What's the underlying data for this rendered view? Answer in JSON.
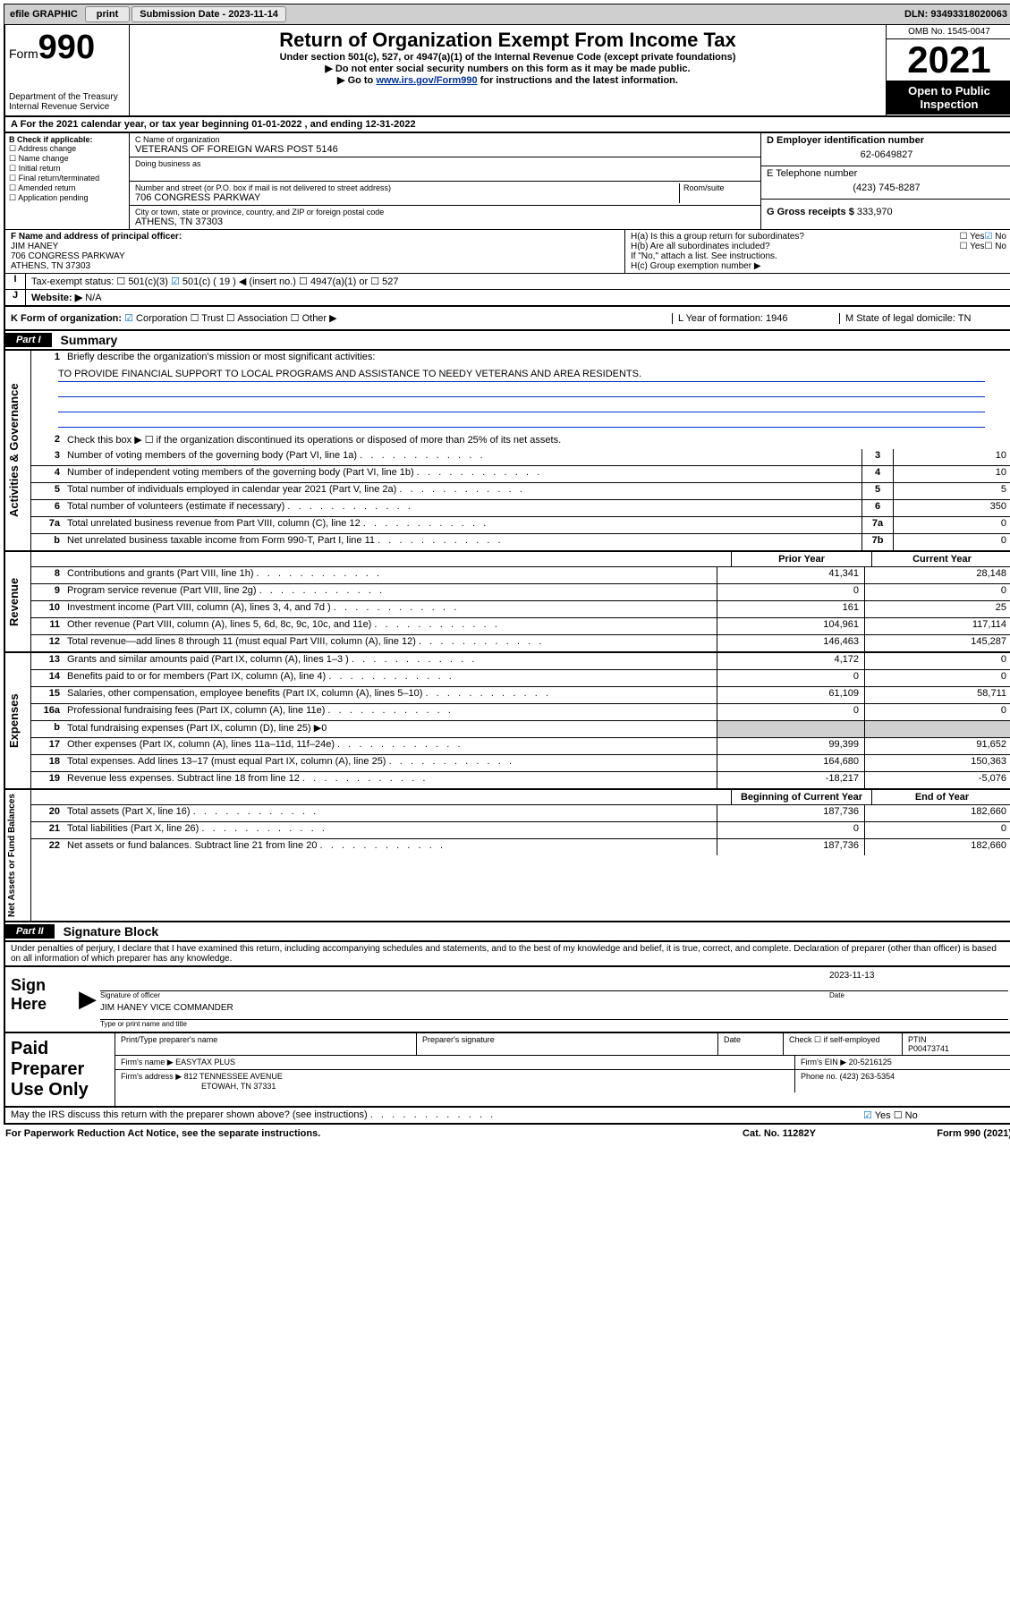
{
  "topbar": {
    "efile": "efile GRAPHIC",
    "print": "print",
    "subdate_label": "Submission Date - 2023-11-14",
    "dln": "DLN: 93493318020063"
  },
  "header": {
    "form_word": "Form",
    "form_num": "990",
    "dept": "Department of the Treasury",
    "irs": "Internal Revenue Service",
    "title": "Return of Organization Exempt From Income Tax",
    "sub": "Under section 501(c), 527, or 4947(a)(1) of the Internal Revenue Code (except private foundations)",
    "note1": "Do not enter social security numbers on this form as it may be made public.",
    "note2_pre": "Go to ",
    "note2_link": "www.irs.gov/Form990",
    "note2_post": " for instructions and the latest information.",
    "omb": "OMB No. 1545-0047",
    "year": "2021",
    "open": "Open to Public Inspection"
  },
  "rowA": "For the 2021 calendar year, or tax year beginning 01-01-2022   , and ending 12-31-2022",
  "boxB": {
    "title": "B Check if applicable:",
    "opts": [
      "Address change",
      "Name change",
      "Initial return",
      "Final return/terminated",
      "Amended return",
      "Application pending"
    ]
  },
  "boxC": {
    "label": "C Name of organization",
    "name": "VETERANS OF FOREIGN WARS POST 5146",
    "dba_label": "Doing business as",
    "addr_label": "Number and street (or P.O. box if mail is not delivered to street address)",
    "room": "Room/suite",
    "addr": "706 CONGRESS PARKWAY",
    "city_label": "City or town, state or province, country, and ZIP or foreign postal code",
    "city": "ATHENS, TN  37303"
  },
  "boxD": {
    "label": "D Employer identification number",
    "val": "62-0649827"
  },
  "boxE": {
    "label": "E Telephone number",
    "val": "(423) 745-8287"
  },
  "boxG": {
    "label": "G Gross receipts $",
    "val": "333,970"
  },
  "boxF": {
    "label": "F  Name and address of principal officer:",
    "name": "JIM HANEY",
    "addr1": "706 CONGRESS PARKWAY",
    "addr2": "ATHENS, TN  37303"
  },
  "boxH": {
    "a": "H(a)  Is this a group return for subordinates?",
    "b": "H(b)  Are all subordinates included?",
    "b_note": "If \"No,\" attach a list. See instructions.",
    "c": "H(c)  Group exemption number ▶",
    "yes": "Yes",
    "no": "No"
  },
  "rowI": {
    "label": "Tax-exempt status:",
    "o1": "501(c)(3)",
    "o2": "501(c) ( 19 ) ◀ (insert no.)",
    "o3": "4947(a)(1) or",
    "o4": "527"
  },
  "rowJ": {
    "label": "Website: ▶",
    "val": "N/A"
  },
  "rowK": {
    "label": "K Form of organization:",
    "opts": [
      "Corporation",
      "Trust",
      "Association",
      "Other ▶"
    ],
    "L": "L Year of formation: 1946",
    "M": "M State of legal domicile: TN"
  },
  "parts": {
    "p1": "Part I",
    "p1_title": "Summary",
    "p2": "Part II",
    "p2_title": "Signature Block"
  },
  "vlabels": {
    "ag": "Activities & Governance",
    "rev": "Revenue",
    "exp": "Expenses",
    "na": "Net Assets or Fund Balances"
  },
  "line1": {
    "label": "Briefly describe the organization's mission or most significant activities:",
    "text": "TO PROVIDE FINANCIAL SUPPORT TO LOCAL PROGRAMS AND ASSISTANCE TO NEEDY VETERANS AND AREA RESIDENTS."
  },
  "line2": "Check this box ▶ ☐  if the organization discontinued its operations or disposed of more than 25% of its net assets.",
  "govlines": [
    {
      "n": "3",
      "t": "Number of voting members of the governing body (Part VI, line 1a)",
      "bx": "3",
      "v": "10"
    },
    {
      "n": "4",
      "t": "Number of independent voting members of the governing body (Part VI, line 1b)",
      "bx": "4",
      "v": "10"
    },
    {
      "n": "5",
      "t": "Total number of individuals employed in calendar year 2021 (Part V, line 2a)",
      "bx": "5",
      "v": "5"
    },
    {
      "n": "6",
      "t": "Total number of volunteers (estimate if necessary)",
      "bx": "6",
      "v": "350"
    },
    {
      "n": "7a",
      "t": "Total unrelated business revenue from Part VIII, column (C), line 12",
      "bx": "7a",
      "v": "0"
    },
    {
      "n": "b",
      "t": "Net unrelated business taxable income from Form 990-T, Part I, line 11",
      "bx": "7b",
      "v": "0"
    }
  ],
  "colhdrs": {
    "py": "Prior Year",
    "cy": "Current Year"
  },
  "revlines": [
    {
      "n": "8",
      "t": "Contributions and grants (Part VIII, line 1h)",
      "p": "41,341",
      "c": "28,148"
    },
    {
      "n": "9",
      "t": "Program service revenue (Part VIII, line 2g)",
      "p": "0",
      "c": "0"
    },
    {
      "n": "10",
      "t": "Investment income (Part VIII, column (A), lines 3, 4, and 7d )",
      "p": "161",
      "c": "25"
    },
    {
      "n": "11",
      "t": "Other revenue (Part VIII, column (A), lines 5, 6d, 8c, 9c, 10c, and 11e)",
      "p": "104,961",
      "c": "117,114"
    },
    {
      "n": "12",
      "t": "Total revenue—add lines 8 through 11 (must equal Part VIII, column (A), line 12)",
      "p": "146,463",
      "c": "145,287"
    }
  ],
  "explines": [
    {
      "n": "13",
      "t": "Grants and similar amounts paid (Part IX, column (A), lines 1–3 )",
      "p": "4,172",
      "c": "0"
    },
    {
      "n": "14",
      "t": "Benefits paid to or for members (Part IX, column (A), line 4)",
      "p": "0",
      "c": "0"
    },
    {
      "n": "15",
      "t": "Salaries, other compensation, employee benefits (Part IX, column (A), lines 5–10)",
      "p": "61,109",
      "c": "58,711"
    },
    {
      "n": "16a",
      "t": "Professional fundraising fees (Part IX, column (A), line 11e)",
      "p": "0",
      "c": "0"
    },
    {
      "n": "b",
      "t": "Total fundraising expenses (Part IX, column (D), line 25) ▶0",
      "p": "",
      "c": "",
      "shade": true
    },
    {
      "n": "17",
      "t": "Other expenses (Part IX, column (A), lines 11a–11d, 11f–24e)",
      "p": "99,399",
      "c": "91,652"
    },
    {
      "n": "18",
      "t": "Total expenses. Add lines 13–17 (must equal Part IX, column (A), line 25)",
      "p": "164,680",
      "c": "150,363"
    },
    {
      "n": "19",
      "t": "Revenue less expenses. Subtract line 18 from line 12",
      "p": "-18,217",
      "c": "-5,076"
    }
  ],
  "nahdrs": {
    "b": "Beginning of Current Year",
    "e": "End of Year"
  },
  "nalines": [
    {
      "n": "20",
      "t": "Total assets (Part X, line 16)",
      "p": "187,736",
      "c": "182,660"
    },
    {
      "n": "21",
      "t": "Total liabilities (Part X, line 26)",
      "p": "0",
      "c": "0"
    },
    {
      "n": "22",
      "t": "Net assets or fund balances. Subtract line 21 from line 20",
      "p": "187,736",
      "c": "182,660"
    }
  ],
  "sigdecl": "Under penalties of perjury, I declare that I have examined this return, including accompanying schedules and statements, and to the best of my knowledge and belief, it is true, correct, and complete. Declaration of preparer (other than officer) is based on all information of which preparer has any knowledge.",
  "sign": {
    "here": "Sign Here",
    "sig_label": "Signature of officer",
    "date_label": "Date",
    "date": "2023-11-13",
    "name": "JIM HANEY VICE COMMANDER",
    "name_label": "Type or print name and title"
  },
  "prep": {
    "title": "Paid Preparer Use Only",
    "h_name": "Print/Type preparer's name",
    "h_sig": "Preparer's signature",
    "h_date": "Date",
    "h_check": "Check ☐ if self-employed",
    "h_ptin": "PTIN",
    "ptin": "P00473741",
    "firm_label": "Firm's name   ▶",
    "firm": "EASYTAX PLUS",
    "ein_label": "Firm's EIN ▶",
    "ein": "20-5216125",
    "addr_label": "Firm's address ▶",
    "addr1": "812 TENNESSEE AVENUE",
    "addr2": "ETOWAH, TN  37331",
    "phone_label": "Phone no.",
    "phone": "(423) 263-5354"
  },
  "may_discuss": "May the IRS discuss this return with the preparer shown above? (see instructions)",
  "footer": {
    "pra": "For Paperwork Reduction Act Notice, see the separate instructions.",
    "cat": "Cat. No. 11282Y",
    "form": "Form 990 (2021)"
  }
}
